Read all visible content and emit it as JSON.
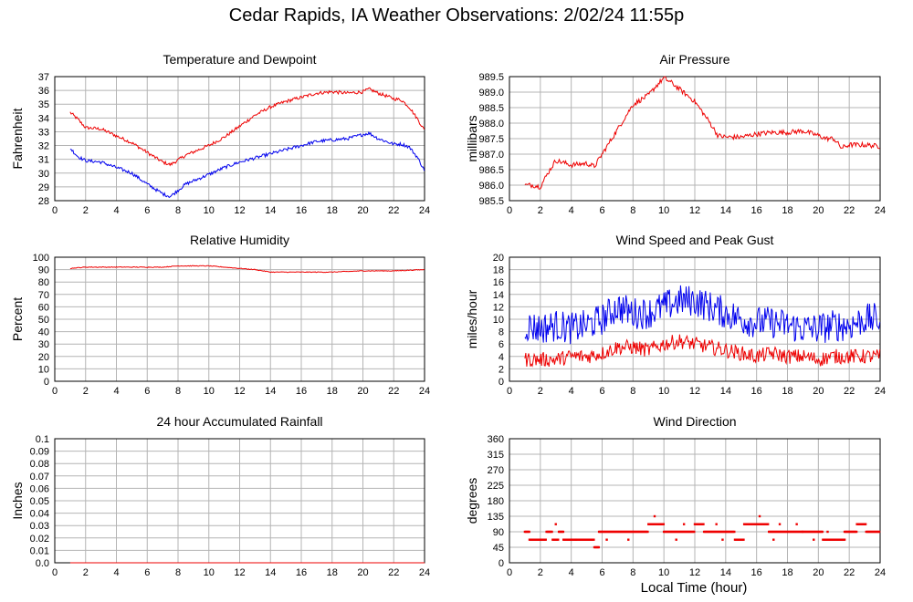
{
  "title": "Cedar Rapids, IA Weather Observations: 2/02/24 11:55p",
  "x_axis_label": "Local Time (hour)",
  "colors": {
    "red": "#ee0000",
    "blue": "#0000ee",
    "grid": "#b4b4b4"
  },
  "chart_data": [
    {
      "id": "temp",
      "type": "line",
      "title": "Temperature and Dewpoint",
      "ylabel": "Fahrenheit",
      "xlim": [
        0,
        24
      ],
      "ylim": [
        28,
        37
      ],
      "yticks": [
        "28",
        "29",
        "30",
        "31",
        "32",
        "33",
        "34",
        "35",
        "36",
        "37"
      ],
      "xticks": [
        "0",
        "2",
        "4",
        "6",
        "8",
        "10",
        "12",
        "14",
        "16",
        "18",
        "20",
        "22",
        "24"
      ],
      "grid": true,
      "series": [
        {
          "color": "red",
          "jitter": 0.12,
          "x": [
            1.0,
            1.5,
            2.0,
            3.0,
            4.0,
            5.0,
            6.0,
            7.0,
            7.5,
            8.5,
            10.0,
            11.0,
            12.0,
            13.0,
            14.0,
            15.0,
            16.0,
            17.0,
            18.0,
            19.0,
            20.0,
            20.4,
            21.0,
            22.0,
            22.5,
            23.0,
            23.5,
            24.0
          ],
          "y": [
            34.4,
            33.9,
            33.3,
            33.2,
            32.7,
            32.2,
            31.5,
            30.8,
            30.6,
            31.3,
            32.0,
            32.6,
            33.4,
            34.2,
            34.8,
            35.2,
            35.5,
            35.8,
            35.9,
            35.8,
            35.9,
            36.1,
            35.8,
            35.4,
            35.3,
            34.8,
            34.0,
            33.1
          ]
        },
        {
          "color": "blue",
          "jitter": 0.12,
          "x": [
            1.0,
            1.5,
            2.0,
            3.0,
            4.0,
            5.0,
            6.0,
            7.0,
            7.5,
            8.5,
            10.0,
            11.0,
            12.0,
            13.0,
            14.0,
            15.0,
            16.0,
            17.0,
            18.0,
            19.0,
            20.0,
            20.4,
            21.0,
            22.0,
            22.5,
            23.0,
            23.5,
            24.0
          ],
          "y": [
            31.8,
            31.2,
            30.9,
            30.8,
            30.4,
            30.0,
            29.2,
            28.5,
            28.3,
            29.2,
            29.9,
            30.4,
            30.8,
            31.1,
            31.4,
            31.7,
            32.0,
            32.3,
            32.4,
            32.5,
            32.8,
            32.9,
            32.5,
            32.1,
            32.1,
            31.9,
            31.2,
            30.2
          ]
        }
      ]
    },
    {
      "id": "pressure",
      "type": "line",
      "title": "Air Pressure",
      "ylabel": "millibars",
      "xlim": [
        0,
        24
      ],
      "ylim": [
        985.5,
        989.5
      ],
      "yticks": [
        "985.5",
        "986.0",
        "986.5",
        "987.0",
        "987.5",
        "988.0",
        "988.5",
        "989.0",
        "989.5"
      ],
      "xticks": [
        "0",
        "2",
        "4",
        "6",
        "8",
        "10",
        "12",
        "14",
        "16",
        "18",
        "20",
        "22",
        "24"
      ],
      "grid": true,
      "series": [
        {
          "color": "red",
          "jitter": 0.08,
          "x": [
            1.0,
            1.5,
            2.0,
            2.5,
            3.0,
            4.0,
            5.0,
            5.5,
            6.0,
            7.0,
            8.0,
            9.0,
            9.5,
            10.0,
            10.5,
            11.0,
            12.0,
            13.0,
            13.5,
            14.0,
            15.0,
            16.0,
            17.0,
            18.0,
            19.0,
            20.0,
            20.5,
            21.0,
            21.5,
            22.0,
            23.0,
            24.0
          ],
          "y": [
            986.0,
            986.0,
            985.95,
            986.4,
            986.8,
            986.65,
            986.7,
            986.6,
            987.0,
            987.8,
            988.6,
            988.9,
            989.2,
            989.45,
            989.3,
            989.1,
            988.7,
            988.0,
            987.6,
            987.55,
            987.55,
            987.65,
            987.7,
            987.7,
            987.75,
            987.6,
            987.5,
            987.5,
            987.2,
            987.3,
            987.3,
            987.25
          ]
        }
      ]
    },
    {
      "id": "rh",
      "type": "line",
      "title": "Relative Humidity",
      "ylabel": "Percent",
      "xlim": [
        0,
        24
      ],
      "ylim": [
        0,
        100
      ],
      "yticks": [
        "0",
        "10",
        "20",
        "30",
        "40",
        "50",
        "60",
        "70",
        "80",
        "90",
        "100"
      ],
      "xticks": [
        "0",
        "2",
        "4",
        "6",
        "8",
        "10",
        "12",
        "14",
        "16",
        "18",
        "20",
        "22",
        "24"
      ],
      "grid": true,
      "series": [
        {
          "color": "red",
          "jitter": 0.3,
          "x": [
            1.0,
            1.5,
            2.0,
            4.0,
            6.0,
            7.0,
            8.0,
            10.0,
            11.0,
            12.0,
            13.0,
            14.0,
            16.0,
            18.0,
            19.0,
            20.0,
            22.0,
            24.0
          ],
          "y": [
            91,
            91.5,
            92,
            92,
            92,
            92,
            93,
            93,
            92,
            91,
            90,
            88,
            88,
            88,
            88.5,
            89,
            89,
            90
          ]
        }
      ]
    },
    {
      "id": "wind",
      "type": "line",
      "title": "Wind Speed and Peak Gust",
      "ylabel": "miles/hour",
      "xlim": [
        0,
        24
      ],
      "ylim": [
        0,
        20
      ],
      "yticks": [
        "0",
        "2",
        "4",
        "6",
        "8",
        "10",
        "12",
        "14",
        "16",
        "18",
        "20"
      ],
      "xticks": [
        "0",
        "2",
        "4",
        "6",
        "8",
        "10",
        "12",
        "14",
        "16",
        "18",
        "20",
        "22",
        "24"
      ],
      "grid": true,
      "series": [
        {
          "color": "blue",
          "jitter": 2.6,
          "x": [
            1.0,
            2.0,
            3.0,
            4.0,
            5.0,
            6.0,
            7.0,
            8.0,
            9.0,
            10.0,
            11.0,
            12.0,
            13.0,
            14.0,
            15.0,
            16.0,
            17.0,
            18.0,
            19.0,
            20.0,
            21.0,
            22.0,
            23.0,
            24.0
          ],
          "y": [
            9,
            8.5,
            9,
            8.5,
            9,
            10,
            12,
            11,
            11,
            12,
            13,
            13,
            12,
            11,
            10,
            9.5,
            9.5,
            9,
            8.5,
            8.5,
            9,
            9,
            10,
            10
          ]
        },
        {
          "color": "red",
          "jitter": 1.2,
          "x": [
            1.0,
            2.0,
            3.0,
            4.0,
            5.0,
            6.0,
            7.0,
            8.0,
            9.0,
            10.0,
            11.0,
            12.0,
            13.0,
            14.0,
            15.0,
            16.0,
            17.0,
            18.0,
            19.0,
            20.0,
            21.0,
            22.0,
            23.0,
            24.0
          ],
          "y": [
            3.5,
            3.5,
            3.5,
            4,
            4,
            4.5,
            5.5,
            5.5,
            5,
            6,
            6.5,
            6,
            5.5,
            5,
            4.5,
            4,
            4.5,
            4,
            4,
            3.5,
            4,
            4,
            4,
            4
          ]
        }
      ]
    },
    {
      "id": "rain",
      "type": "line",
      "title": "24 hour Accumulated Rainfall",
      "ylabel": "Inches",
      "xlim": [
        0,
        24
      ],
      "ylim": [
        0,
        0.1
      ],
      "yticks": [
        "0.0",
        "0.01",
        "0.02",
        "0.03",
        "0.04",
        "0.05",
        "0.06",
        "0.07",
        "0.08",
        "0.09",
        "0.1"
      ],
      "xticks": [
        "0",
        "2",
        "4",
        "6",
        "8",
        "10",
        "12",
        "14",
        "16",
        "18",
        "20",
        "22",
        "24"
      ],
      "grid": true,
      "series": [
        {
          "color": "red",
          "jitter": 0,
          "x": [
            1.0,
            24.0
          ],
          "y": [
            0,
            0
          ]
        }
      ]
    },
    {
      "id": "wdir",
      "type": "scatter",
      "title": "Wind Direction",
      "ylabel": "degrees",
      "xlim": [
        0,
        24
      ],
      "ylim": [
        0,
        360
      ],
      "yticks": [
        "0",
        "45",
        "90",
        "135",
        "180",
        "225",
        "270",
        "315",
        "360"
      ],
      "xticks": [
        "0",
        "2",
        "4",
        "6",
        "8",
        "10",
        "12",
        "14",
        "16",
        "18",
        "20",
        "22",
        "24"
      ],
      "grid": true,
      "series": [
        {
          "color": "red",
          "segments": [
            {
              "x0": 1.0,
              "x1": 1.3,
              "y": 90
            },
            {
              "x0": 1.3,
              "x1": 2.4,
              "y": 67
            },
            {
              "x0": 2.4,
              "x1": 2.8,
              "y": 90
            },
            {
              "x0": 2.8,
              "x1": 3.2,
              "y": 67
            },
            {
              "x0": 3.2,
              "x1": 3.5,
              "y": 90
            },
            {
              "x0": 3.5,
              "x1": 5.5,
              "y": 67
            },
            {
              "x0": 5.5,
              "x1": 5.8,
              "y": 45
            },
            {
              "x0": 5.8,
              "x1": 9.0,
              "y": 90
            },
            {
              "x0": 9.0,
              "x1": 10.0,
              "y": 112
            },
            {
              "x0": 10.0,
              "x1": 12.0,
              "y": 90
            },
            {
              "x0": 12.0,
              "x1": 12.6,
              "y": 112
            },
            {
              "x0": 12.6,
              "x1": 14.6,
              "y": 90
            },
            {
              "x0": 14.6,
              "x1": 15.2,
              "y": 67
            },
            {
              "x0": 15.2,
              "x1": 16.8,
              "y": 112
            },
            {
              "x0": 16.8,
              "x1": 19.0,
              "y": 90
            },
            {
              "x0": 19.0,
              "x1": 20.3,
              "y": 90
            },
            {
              "x0": 20.3,
              "x1": 21.7,
              "y": 67
            },
            {
              "x0": 21.7,
              "x1": 22.5,
              "y": 90
            },
            {
              "x0": 22.5,
              "x1": 23.1,
              "y": 112
            },
            {
              "x0": 23.1,
              "x1": 24.0,
              "y": 90
            }
          ],
          "extra_points": [
            [
              3.0,
              112
            ],
            [
              9.4,
              135
            ],
            [
              16.2,
              135
            ],
            [
              9.8,
              112
            ],
            [
              11.3,
              112
            ],
            [
              13.4,
              112
            ],
            [
              17.5,
              112
            ],
            [
              18.6,
              112
            ],
            [
              4.3,
              67
            ],
            [
              6.3,
              67
            ],
            [
              7.7,
              67
            ],
            [
              10.8,
              67
            ],
            [
              13.8,
              67
            ],
            [
              17.1,
              67
            ],
            [
              19.7,
              67
            ],
            [
              20.6,
              90
            ]
          ]
        }
      ]
    }
  ]
}
